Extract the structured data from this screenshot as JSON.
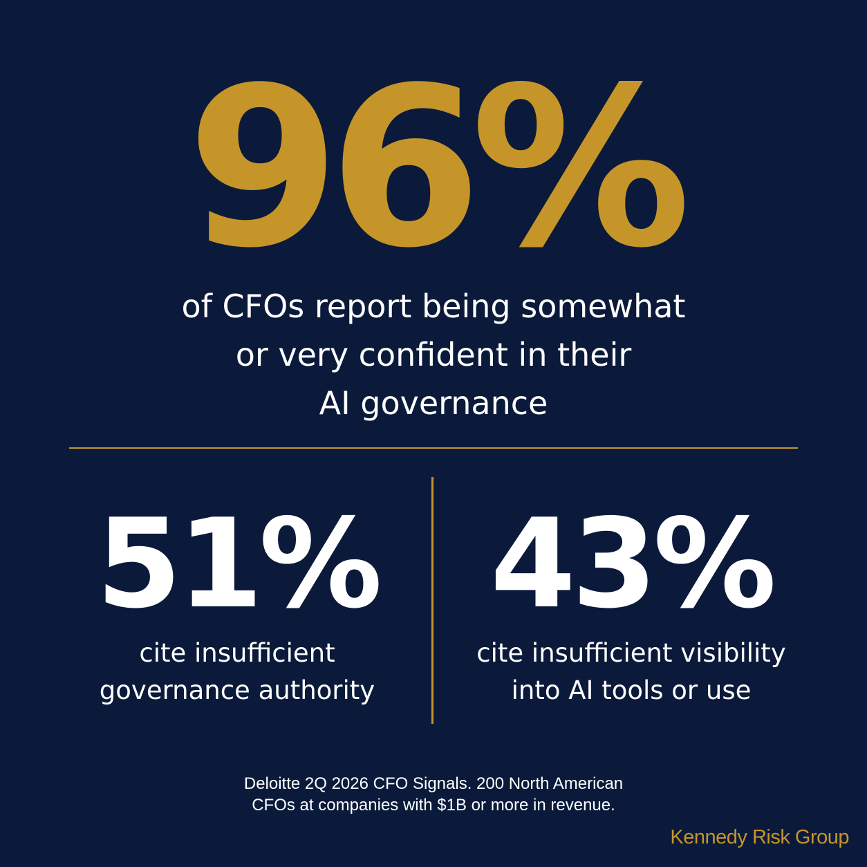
{
  "colors": {
    "background": "#0b1a3a",
    "accent_gold": "#c6952a",
    "text_white": "#ffffff"
  },
  "headline": {
    "value": "96%",
    "caption_lines": [
      "of CFOs report being somewhat",
      "or very confident in their",
      "AI governance"
    ]
  },
  "stats": [
    {
      "value": "51%",
      "caption_lines": [
        "cite insufficient",
        "governance authority"
      ]
    },
    {
      "value": "43%",
      "caption_lines": [
        "cite insufficient visibility",
        "into AI tools or use"
      ]
    }
  ],
  "source": {
    "lines": [
      "Deloitte 2Q 2026 CFO Signals. 200 North American",
      "CFOs at companies with $1B or more in revenue."
    ]
  },
  "brand": {
    "name": "Kennedy Risk Group"
  }
}
